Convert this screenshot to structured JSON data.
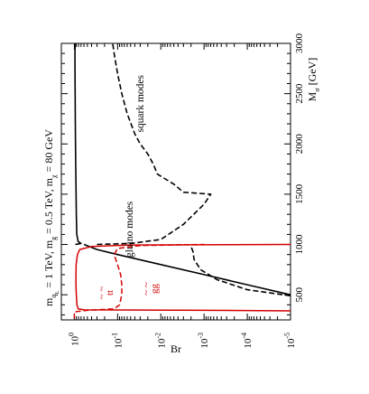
{
  "chart_data": {
    "type": "line",
    "title": "m_{\\tilde q_L} = 1 TeV, m_{\\tilde g} = 0.5 TeV, m_{\\tilde\\chi} = 80 GeV",
    "title_parts": {
      "m": "m",
      "sub1": "q",
      "sub1b": "L",
      "t1": " = 1 TeV, m",
      "sub2": "g",
      "t2": " = 0.5 TeV, m",
      "sub3": "χ",
      "t3": " = 80 GeV"
    },
    "xlabel": "M",
    "xlabel_sub": "σ",
    "xlabel_unit": " [GeV]",
    "ylabel": "Br",
    "x_range": [
      250,
      3000
    ],
    "y_range": [
      1e-05,
      2
    ],
    "y_scale": "log",
    "x_ticks": [
      "500",
      "1000",
      "1500",
      "2000",
      "2500",
      "3000"
    ],
    "y_ticks": [
      {
        "base": "10",
        "exp": "-5"
      },
      {
        "base": "10",
        "exp": "-4"
      },
      {
        "base": "10",
        "exp": "-3"
      },
      {
        "base": "10",
        "exp": "-2"
      },
      {
        "base": "10",
        "exp": "-1"
      },
      {
        "base": "10",
        "exp": "0"
      }
    ],
    "orientation": "rotated 90 degrees counter-clockwise",
    "series": [
      {
        "name": "gluino modes",
        "color": "#000000",
        "dash": "solid",
        "points": [
          [
            1000,
            0.95
          ],
          [
            1010,
            0.7
          ],
          [
            1030,
            0.82
          ],
          [
            1100,
            0.88
          ],
          [
            1300,
            0.9
          ],
          [
            1600,
            0.92
          ],
          [
            1800,
            0.93
          ],
          [
            2000,
            0.94
          ],
          [
            2200,
            0.95
          ],
          [
            2500,
            0.96
          ],
          [
            2800,
            0.97
          ],
          [
            3000,
            0.97
          ]
        ]
      },
      {
        "name": "squark modes",
        "color": "#000000",
        "dash": "dashed",
        "points": [
          [
            1000,
            0.3
          ],
          [
            1010,
            0.05
          ],
          [
            1050,
            0.01
          ],
          [
            1200,
            0.003
          ],
          [
            1400,
            0.001
          ],
          [
            1500,
            0.0007
          ],
          [
            1520,
            0.003
          ],
          [
            1600,
            0.005
          ],
          [
            1700,
            0.012
          ],
          [
            1800,
            0.015
          ],
          [
            1900,
            0.02
          ],
          [
            2000,
            0.03
          ],
          [
            2100,
            0.04
          ],
          [
            2300,
            0.06
          ],
          [
            2500,
            0.08
          ],
          [
            2700,
            0.1
          ],
          [
            2900,
            0.12
          ],
          [
            3000,
            0.13
          ]
        ]
      },
      {
        "name": "",
        "color": "#000000",
        "dash": "solid",
        "points": [
          [
            500,
            1e-05
          ],
          [
            600,
            0.0001
          ],
          [
            700,
            0.001
          ],
          [
            800,
            0.01
          ],
          [
            900,
            0.1
          ],
          [
            950,
            0.3
          ],
          [
            1000,
            0.6
          ]
        ]
      },
      {
        "name": "",
        "color": "#000000",
        "dash": "dashed",
        "points": [
          [
            490,
            1e-05
          ],
          [
            550,
            0.0001
          ],
          [
            650,
            0.0005
          ],
          [
            750,
            0.0012
          ],
          [
            850,
            0.0017
          ],
          [
            930,
            0.0018
          ],
          [
            980,
            0.002
          ],
          [
            1000,
            0.002
          ]
        ]
      },
      {
        "name": "t t̄",
        "color": "#d40000",
        "dash": "solid",
        "points": [
          [
            340,
            1e-05
          ],
          [
            345,
            0.0008
          ],
          [
            350,
            0.6
          ],
          [
            360,
            0.82
          ],
          [
            400,
            0.87
          ],
          [
            500,
            0.9
          ],
          [
            600,
            0.92
          ],
          [
            700,
            0.92
          ],
          [
            800,
            0.91
          ],
          [
            900,
            0.85
          ],
          [
            950,
            0.75
          ],
          [
            980,
            0.4
          ],
          [
            995,
            0.05
          ],
          [
            1000,
            1e-05
          ]
        ]
      },
      {
        "name": "g g",
        "color": "#d40000",
        "dash": "dashed",
        "points": [
          [
            260,
            1.0
          ],
          [
            300,
            1.0
          ],
          [
            330,
            1.0
          ],
          [
            345,
            0.5
          ],
          [
            360,
            0.12
          ],
          [
            400,
            0.09
          ],
          [
            500,
            0.08
          ],
          [
            600,
            0.08
          ],
          [
            700,
            0.085
          ],
          [
            800,
            0.1
          ],
          [
            900,
            0.12
          ],
          [
            960,
            0.1
          ],
          [
            990,
            0.03
          ],
          [
            1000,
            0.001
          ]
        ]
      }
    ],
    "annotations": [
      {
        "text": "gluino modes",
        "x": 1150,
        "y": 0.045
      },
      {
        "text": "squark modes",
        "x": 2400,
        "y": 0.025
      },
      {
        "text": "tt",
        "x": 520,
        "y": 0.13
      },
      {
        "text": "gg",
        "x": 560,
        "y": 0.012
      }
    ]
  }
}
